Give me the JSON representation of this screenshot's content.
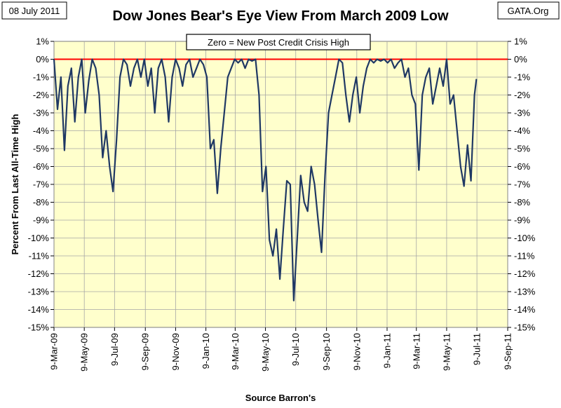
{
  "header": {
    "date_label": "08 July 2011",
    "source_tag": "GATA.Org"
  },
  "chart_data": {
    "type": "line",
    "title": "Dow Jones Bear's Eye View From March 2009 Low",
    "annotation": "Zero = New Post Credit Crisis High",
    "xlabel": "Source Barron's",
    "ylabel": "Percent From Last All-Time High",
    "ylim": [
      -15,
      1
    ],
    "xlim": [
      "2009-03-09",
      "2011-09-09"
    ],
    "x_ticks": [
      "9-Mar-09",
      "9-May-09",
      "9-Jul-09",
      "9-Sep-09",
      "9-Nov-09",
      "9-Jan-10",
      "9-Mar-10",
      "9-May-10",
      "9-Jul-10",
      "9-Sep-10",
      "9-Nov-10",
      "9-Jan-11",
      "9-Mar-11",
      "9-May-11",
      "9-Jul-11",
      "9-Sep-11"
    ],
    "y_ticks": [
      "1%",
      "0%",
      "-1%",
      "-2%",
      "-3%",
      "-4%",
      "-5%",
      "-6%",
      "-7%",
      "-8%",
      "-9%",
      "-10%",
      "-11%",
      "-12%",
      "-13%",
      "-14%",
      "-15%"
    ],
    "grid": true,
    "reference_line": {
      "y": 0,
      "color": "#ff0000"
    },
    "colors": {
      "plot_bg": "#ffffcc",
      "series": "#1f3864",
      "grid": "#a6a6a6"
    },
    "series": [
      {
        "x": [
          "2009-03-09",
          "2009-03-16",
          "2009-03-23",
          "2009-03-30",
          "2009-04-06",
          "2009-04-13",
          "2009-04-20",
          "2009-04-27",
          "2009-05-04",
          "2009-05-11",
          "2009-05-18",
          "2009-05-25",
          "2009-06-01",
          "2009-06-08",
          "2009-06-15",
          "2009-06-22",
          "2009-06-29",
          "2009-07-06",
          "2009-07-13",
          "2009-07-20",
          "2009-07-27",
          "2009-08-03",
          "2009-08-10",
          "2009-08-17",
          "2009-08-24",
          "2009-08-31",
          "2009-09-07",
          "2009-09-14",
          "2009-09-21",
          "2009-09-28",
          "2009-10-05",
          "2009-10-12",
          "2009-10-19",
          "2009-10-26",
          "2009-11-02",
          "2009-11-09",
          "2009-11-16",
          "2009-11-23",
          "2009-11-30",
          "2009-12-07",
          "2009-12-14",
          "2009-12-21",
          "2009-12-28",
          "2010-01-04",
          "2010-01-11",
          "2010-01-18",
          "2010-01-25",
          "2010-02-01",
          "2010-02-08",
          "2010-02-15",
          "2010-02-22",
          "2010-03-01",
          "2010-03-08",
          "2010-03-15",
          "2010-03-22",
          "2010-03-29",
          "2010-04-05",
          "2010-04-12",
          "2010-04-19",
          "2010-04-26",
          "2010-05-03",
          "2010-05-10",
          "2010-05-17",
          "2010-05-24",
          "2010-05-31",
          "2010-06-07",
          "2010-06-14",
          "2010-06-21",
          "2010-06-28",
          "2010-07-05",
          "2010-07-12",
          "2010-07-19",
          "2010-07-26",
          "2010-08-02",
          "2010-08-09",
          "2010-08-16",
          "2010-08-23",
          "2010-08-30",
          "2010-09-06",
          "2010-09-13",
          "2010-09-20",
          "2010-09-27",
          "2010-10-04",
          "2010-10-11",
          "2010-10-18",
          "2010-10-25",
          "2010-11-01",
          "2010-11-08",
          "2010-11-15",
          "2010-11-22",
          "2010-11-29",
          "2010-12-06",
          "2010-12-13",
          "2010-12-20",
          "2010-12-27",
          "2011-01-03",
          "2011-01-10",
          "2011-01-17",
          "2011-01-24",
          "2011-01-31",
          "2011-02-07",
          "2011-02-14",
          "2011-02-21",
          "2011-02-28",
          "2011-03-07",
          "2011-03-14",
          "2011-03-21",
          "2011-03-28",
          "2011-04-04",
          "2011-04-11",
          "2011-04-18",
          "2011-04-25",
          "2011-05-02",
          "2011-05-09",
          "2011-05-16",
          "2011-05-23",
          "2011-05-30",
          "2011-06-06",
          "2011-06-13",
          "2011-06-20",
          "2011-06-27",
          "2011-07-04",
          "2011-07-08"
        ],
        "values": [
          0,
          -2.8,
          -1.0,
          -5.1,
          -1.5,
          -0.5,
          -3.5,
          -1.0,
          0,
          -3.0,
          -1.2,
          0,
          -0.5,
          -2.0,
          -5.5,
          -4.0,
          -6.0,
          -7.4,
          -4.5,
          -1.0,
          0,
          -0.3,
          -1.5,
          -0.5,
          0,
          -1.0,
          0,
          -1.5,
          -0.5,
          -3.0,
          -0.5,
          0,
          -1.0,
          -3.5,
          -1.0,
          0,
          -0.5,
          -1.5,
          -0.3,
          0,
          -1.0,
          -0.5,
          0,
          -0.3,
          -1.0,
          -5.0,
          -4.5,
          -7.5,
          -5.0,
          -3.0,
          -1.0,
          -0.5,
          0,
          -0.2,
          0,
          -0.5,
          0,
          -0.1,
          0,
          -2.0,
          -7.4,
          -6.0,
          -10.1,
          -11.0,
          -9.5,
          -12.3,
          -9.5,
          -6.8,
          -7.0,
          -13.5,
          -10.0,
          -6.5,
          -8.0,
          -8.5,
          -6.0,
          -7.0,
          -9.0,
          -10.8,
          -6.5,
          -3.0,
          -2.0,
          -1.0,
          0,
          -0.2,
          -2.0,
          -3.5,
          -2.0,
          -1.0,
          -3.0,
          -1.5,
          -0.5,
          0,
          -0.2,
          0,
          -0.1,
          0,
          -0.2,
          0,
          -0.5,
          -0.2,
          0,
          -1.0,
          -0.5,
          -2.0,
          -2.5,
          -6.2,
          -2.0,
          -1.0,
          -0.5,
          -2.5,
          -1.5,
          -0.5,
          -1.5,
          0,
          -2.5,
          -2.0,
          -4.0,
          -6.0,
          -7.1,
          -4.8,
          -6.8,
          -2.0,
          -1.1
        ]
      }
    ]
  }
}
